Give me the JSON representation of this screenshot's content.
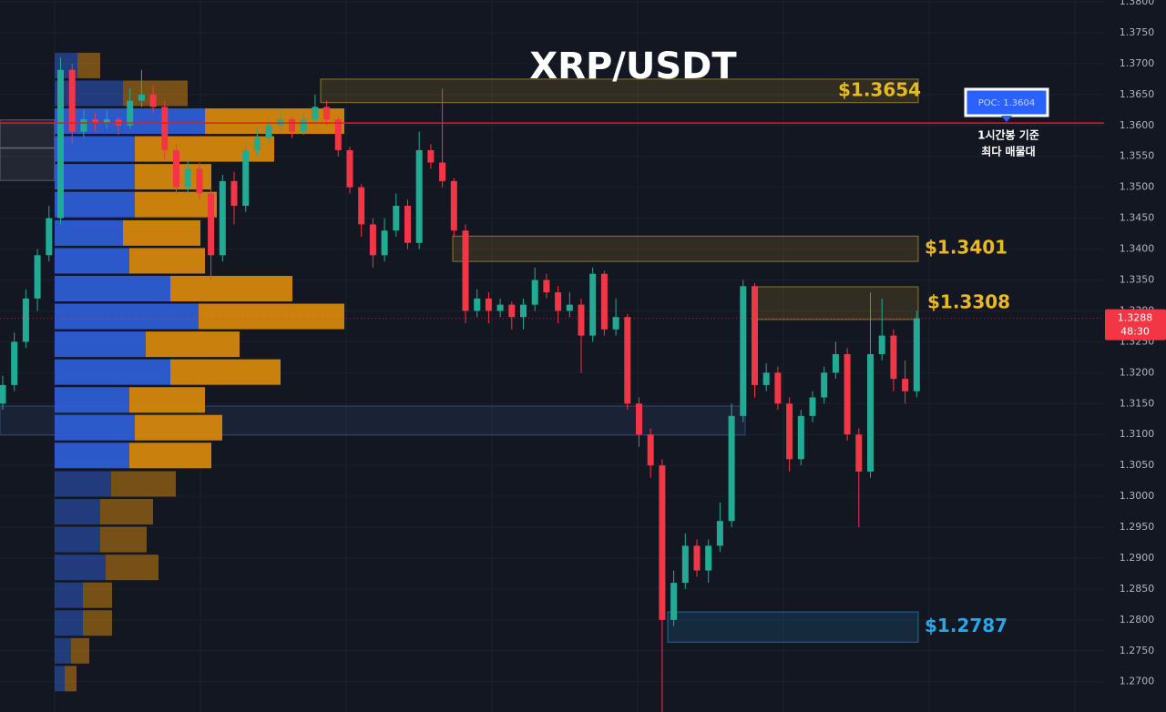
{
  "chart_data": {
    "type": "candlestick",
    "title": "XRP/USDT",
    "ylim": [
      1.2651,
      1.3803
    ],
    "yticks": [
      {
        "value": 1.27,
        "label": "1.2700"
      },
      {
        "value": 1.275,
        "label": "1.2750"
      },
      {
        "value": 1.28,
        "label": "1.2800"
      },
      {
        "value": 1.285,
        "label": "1.2850"
      },
      {
        "value": 1.29,
        "label": "1.2900"
      },
      {
        "value": 1.295,
        "label": "1.2950"
      },
      {
        "value": 1.3,
        "label": "1.3000"
      },
      {
        "value": 1.305,
        "label": "1.3050"
      },
      {
        "value": 1.31,
        "label": "1.3100"
      },
      {
        "value": 1.315,
        "label": "1.3150"
      },
      {
        "value": 1.32,
        "label": "1.3200"
      },
      {
        "value": 1.325,
        "label": "1.3250"
      },
      {
        "value": 1.33,
        "label": "1.3300"
      },
      {
        "value": 1.335,
        "label": "1.3350"
      },
      {
        "value": 1.34,
        "label": "1.3400"
      },
      {
        "value": 1.345,
        "label": "1.3450"
      },
      {
        "value": 1.35,
        "label": "1.3500"
      },
      {
        "value": 1.355,
        "label": "1.3550"
      },
      {
        "value": 1.36,
        "label": "1.3600"
      },
      {
        "value": 1.365,
        "label": "1.3650"
      },
      {
        "value": 1.37,
        "label": "1.3700"
      },
      {
        "value": 1.375,
        "label": "1.3750"
      },
      {
        "value": 1.38,
        "label": "1.3800"
      }
    ],
    "up_color": "#22ab94",
    "down_color": "#f23645",
    "candles": [
      [
        1.315,
        1.3195,
        1.314,
        1.318
      ],
      [
        1.318,
        1.3265,
        1.317,
        1.325
      ],
      [
        1.325,
        1.3335,
        1.324,
        1.332
      ],
      [
        1.332,
        1.34,
        1.33,
        1.339
      ],
      [
        1.339,
        1.347,
        1.338,
        1.345
      ],
      [
        1.345,
        1.371,
        1.344,
        1.369
      ],
      [
        1.369,
        1.37,
        1.357,
        1.359
      ],
      [
        1.359,
        1.3625,
        1.358,
        1.361
      ],
      [
        1.361,
        1.362,
        1.359,
        1.3605
      ],
      [
        1.3605,
        1.3625,
        1.3595,
        1.361
      ],
      [
        1.361,
        1.3615,
        1.3585,
        1.36
      ],
      [
        1.36,
        1.366,
        1.3595,
        1.364
      ],
      [
        1.364,
        1.369,
        1.363,
        1.365
      ],
      [
        1.365,
        1.3665,
        1.362,
        1.363
      ],
      [
        1.363,
        1.364,
        1.3545,
        1.356
      ],
      [
        1.356,
        1.357,
        1.349,
        1.35
      ],
      [
        1.35,
        1.3545,
        1.349,
        1.353
      ],
      [
        1.353,
        1.354,
        1.348,
        1.349
      ],
      [
        1.349,
        1.35,
        1.335,
        1.339
      ],
      [
        1.339,
        1.352,
        1.338,
        1.351
      ],
      [
        1.351,
        1.3525,
        1.344,
        1.347
      ],
      [
        1.347,
        1.357,
        1.346,
        1.356
      ],
      [
        1.356,
        1.3595,
        1.355,
        1.358
      ],
      [
        1.358,
        1.361,
        1.357,
        1.36
      ],
      [
        1.36,
        1.3625,
        1.359,
        1.361
      ],
      [
        1.361,
        1.3615,
        1.358,
        1.359
      ],
      [
        1.359,
        1.362,
        1.3585,
        1.361
      ],
      [
        1.361,
        1.365,
        1.36,
        1.363
      ],
      [
        1.363,
        1.364,
        1.36,
        1.361
      ],
      [
        1.361,
        1.3615,
        1.355,
        1.356
      ],
      [
        1.356,
        1.3565,
        1.349,
        1.35
      ],
      [
        1.35,
        1.3505,
        1.342,
        1.344
      ],
      [
        1.344,
        1.345,
        1.337,
        1.339
      ],
      [
        1.339,
        1.345,
        1.338,
        1.343
      ],
      [
        1.343,
        1.349,
        1.342,
        1.347
      ],
      [
        1.347,
        1.348,
        1.34,
        1.341
      ],
      [
        1.341,
        1.359,
        1.34,
        1.356
      ],
      [
        1.356,
        1.357,
        1.353,
        1.354
      ],
      [
        1.354,
        1.366,
        1.35,
        1.351
      ],
      [
        1.351,
        1.3515,
        1.342,
        1.343
      ],
      [
        1.343,
        1.344,
        1.328,
        1.33
      ],
      [
        1.33,
        1.3335,
        1.329,
        1.332
      ],
      [
        1.332,
        1.333,
        1.328,
        1.33
      ],
      [
        1.33,
        1.332,
        1.329,
        1.331
      ],
      [
        1.331,
        1.3315,
        1.327,
        1.329
      ],
      [
        1.329,
        1.332,
        1.327,
        1.331
      ],
      [
        1.331,
        1.337,
        1.33,
        1.335
      ],
      [
        1.335,
        1.336,
        1.332,
        1.333
      ],
      [
        1.333,
        1.334,
        1.328,
        1.33
      ],
      [
        1.33,
        1.333,
        1.329,
        1.331
      ],
      [
        1.331,
        1.332,
        1.32,
        1.326
      ],
      [
        1.326,
        1.337,
        1.325,
        1.336
      ],
      [
        1.336,
        1.3365,
        1.326,
        1.327
      ],
      [
        1.327,
        1.332,
        1.326,
        1.329
      ],
      [
        1.329,
        1.3295,
        1.314,
        1.315
      ],
      [
        1.315,
        1.316,
        1.308,
        1.31
      ],
      [
        1.31,
        1.311,
        1.303,
        1.305
      ],
      [
        1.305,
        1.306,
        1.265,
        1.28
      ],
      [
        1.28,
        1.288,
        1.279,
        1.286
      ],
      [
        1.286,
        1.294,
        1.285,
        1.292
      ],
      [
        1.292,
        1.293,
        1.287,
        1.288
      ],
      [
        1.288,
        1.293,
        1.286,
        1.292
      ],
      [
        1.292,
        1.299,
        1.291,
        1.296
      ],
      [
        1.296,
        1.315,
        1.295,
        1.313
      ],
      [
        1.313,
        1.335,
        1.312,
        1.334
      ],
      [
        1.334,
        1.3345,
        1.316,
        1.318
      ],
      [
        1.318,
        1.3215,
        1.317,
        1.32
      ],
      [
        1.32,
        1.321,
        1.314,
        1.315
      ],
      [
        1.315,
        1.316,
        1.304,
        1.306
      ],
      [
        1.306,
        1.314,
        1.305,
        1.313
      ],
      [
        1.313,
        1.317,
        1.312,
        1.316
      ],
      [
        1.316,
        1.321,
        1.315,
        1.32
      ],
      [
        1.32,
        1.325,
        1.319,
        1.323
      ],
      [
        1.323,
        1.324,
        1.309,
        1.31
      ],
      [
        1.31,
        1.311,
        1.295,
        1.304
      ],
      [
        1.304,
        1.333,
        1.303,
        1.323
      ],
      [
        1.323,
        1.332,
        1.322,
        1.326
      ],
      [
        1.326,
        1.327,
        1.317,
        1.319
      ],
      [
        1.319,
        1.322,
        1.315,
        1.317
      ],
      [
        1.317,
        1.33,
        1.316,
        1.3288
      ]
    ],
    "volume_profile": {
      "buy_color": "#2f5fd8",
      "sell_color": "#d98a0c",
      "prices": [
        1.3697,
        1.3652,
        1.3607,
        1.3562,
        1.3517,
        1.3472,
        1.3426,
        1.3381,
        1.3336,
        1.3291,
        1.3246,
        1.3201,
        1.3156,
        1.3111,
        1.3066,
        1.302,
        1.2975,
        1.293,
        1.2885,
        1.284,
        1.2795,
        1.275,
        1.2705
      ],
      "buy": [
        25,
        75,
        165,
        88,
        88,
        88,
        75,
        82,
        127,
        158,
        100,
        127,
        82,
        88,
        82,
        62,
        50,
        50,
        56,
        31,
        31,
        18,
        11
      ],
      "sell": [
        25,
        71,
        153,
        153,
        84,
        90,
        85,
        83,
        134,
        160,
        103,
        121,
        83,
        96,
        90,
        71,
        58,
        51,
        58,
        32,
        32,
        20,
        13
      ]
    },
    "zones": [
      {
        "top": 1.3675,
        "bottom": 1.3637,
        "label": "$1.3654",
        "color": "#e8b923"
      },
      {
        "top": 1.3421,
        "bottom": 1.338,
        "label": "$1.3401",
        "color": "#e8b923"
      },
      {
        "top": 1.3339,
        "bottom": 1.3286,
        "label": "$1.3308",
        "color": "#e8b923"
      },
      {
        "top": 1.2813,
        "bottom": 1.2764,
        "label": "$1.2787",
        "color": "#2aa5e8"
      },
      {
        "top": 1.3146,
        "bottom": 1.3099,
        "color": "#4a6da8"
      },
      {
        "top": 1.3609,
        "bottom": 1.3564,
        "color": "#8a8f9a"
      },
      {
        "top": 1.3563,
        "bottom": 1.3511,
        "color": "#8a8f9a"
      }
    ],
    "poc": {
      "value": 1.3604,
      "label": "POC: 1.3604",
      "color": "#e01e1e"
    },
    "annotation": [
      "1시간봉 기준",
      "최다 매물대"
    ],
    "last_price": 1.3288,
    "countdown": "48:30"
  }
}
